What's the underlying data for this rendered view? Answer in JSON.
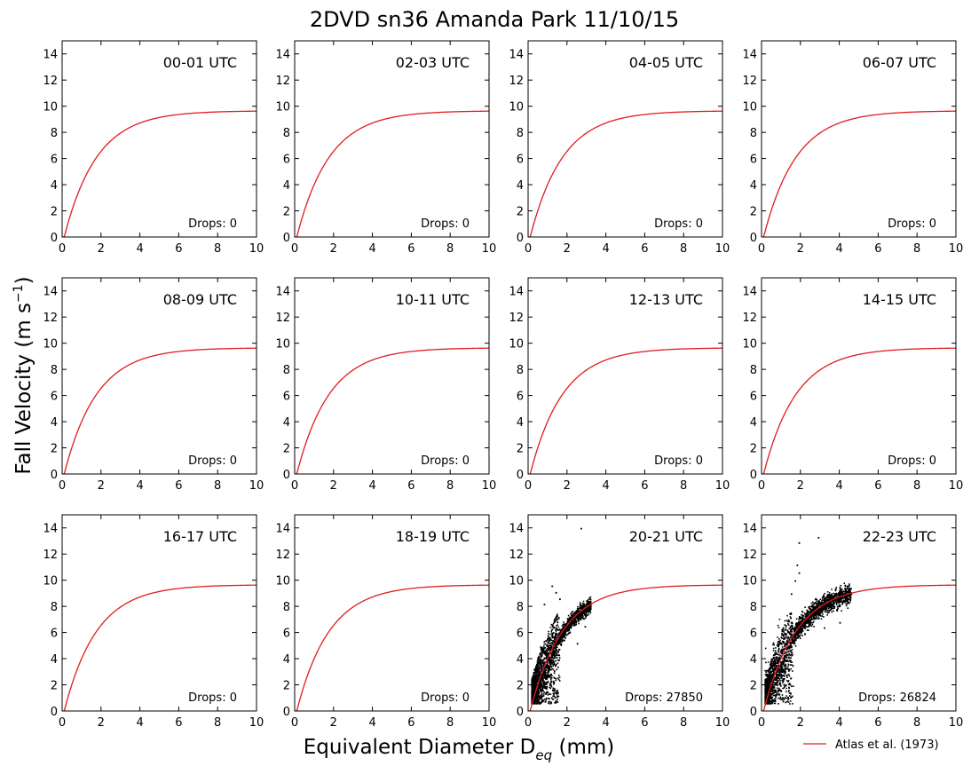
{
  "figure": {
    "title": "2DVD sn36 Amanda Park 11/10/15",
    "ylabel_main": "Fall Velocity (m s",
    "ylabel_sup": "−1",
    "ylabel_end": ")",
    "xlabel_main": "Equivalent Diameter D",
    "xlabel_sub": "eq",
    "xlabel_end": " (mm)",
    "legend_label": "Atlas et al. (1973)",
    "curve_color": "#e31a1c",
    "point_color": "#000000"
  },
  "chart_data": {
    "type": "scatter",
    "xlim": [
      0,
      10
    ],
    "ylim": [
      0,
      15
    ],
    "x_ticks": [
      "0",
      "2",
      "4",
      "6",
      "8",
      "10"
    ],
    "y_ticks": [
      "0",
      "2",
      "4",
      "6",
      "8",
      "10",
      "12",
      "14"
    ],
    "reference_curve": {
      "name": "Atlas et al. (1973)",
      "formula": "v = 9.65 - 10.3 * exp(-0.6 * D)"
    },
    "panels": [
      {
        "label": "00-01 UTC",
        "drops_text": "Drops: 0",
        "drops": 0
      },
      {
        "label": "02-03 UTC",
        "drops_text": "Drops: 0",
        "drops": 0
      },
      {
        "label": "04-05 UTC",
        "drops_text": "Drops: 0",
        "drops": 0
      },
      {
        "label": "06-07 UTC",
        "drops_text": "Drops: 0",
        "drops": 0
      },
      {
        "label": "08-09 UTC",
        "drops_text": "Drops: 0",
        "drops": 0
      },
      {
        "label": "10-11 UTC",
        "drops_text": "Drops: 0",
        "drops": 0
      },
      {
        "label": "12-13 UTC",
        "drops_text": "Drops: 0",
        "drops": 0
      },
      {
        "label": "14-15 UTC",
        "drops_text": "Drops: 0",
        "drops": 0
      },
      {
        "label": "16-17 UTC",
        "drops_text": "Drops: 0",
        "drops": 0
      },
      {
        "label": "18-19 UTC",
        "drops_text": "Drops: 0",
        "drops": 0
      },
      {
        "label": "20-21 UTC",
        "drops_text": "Drops: 27850",
        "drops": 27850,
        "scatter": {
          "dmax": 3.2,
          "spread": 0.6,
          "outliers": [
            [
              2.7,
              14.0
            ],
            [
              1.2,
              9.6
            ],
            [
              1.4,
              9.1
            ],
            [
              1.6,
              8.6
            ],
            [
              0.8,
              8.2
            ],
            [
              2.9,
              6.5
            ],
            [
              2.5,
              5.2
            ]
          ]
        }
      },
      {
        "label": "22-23 UTC",
        "drops_text": "Drops: 26824",
        "drops": 26824,
        "scatter": {
          "dmax": 4.6,
          "spread": 0.8,
          "outliers": [
            [
              1.9,
              12.9
            ],
            [
              2.9,
              13.3
            ],
            [
              1.8,
              11.2
            ],
            [
              1.9,
              10.6
            ],
            [
              1.7,
              10.0
            ],
            [
              4.0,
              9.5
            ],
            [
              1.5,
              9.0
            ],
            [
              4.4,
              8.4
            ],
            [
              4.0,
              6.8
            ],
            [
              3.2,
              6.4
            ]
          ]
        }
      }
    ]
  }
}
